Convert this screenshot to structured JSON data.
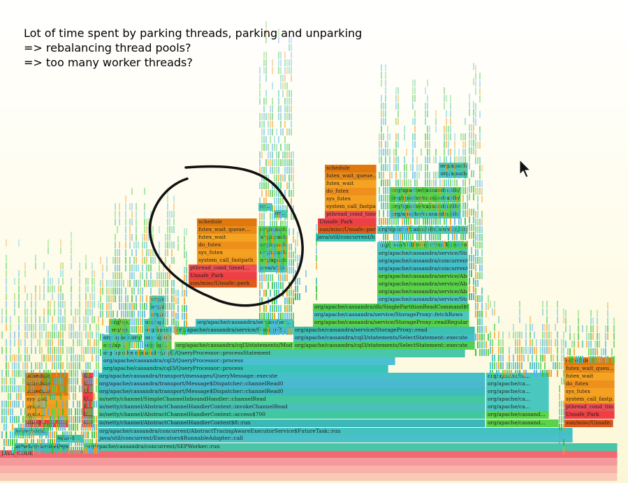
{
  "annotation": {
    "lines": [
      "Lot of time spent by parking threads, parking and unparking",
      "=> rebalancing thread pools?",
      "=> too many worker threads?"
    ]
  },
  "colors": {
    "orange": "#f39c1c",
    "dark_orange": "#e0780e",
    "red": "#ee3f44",
    "green": "#5ad24a",
    "dark_green": "#2fbf3f",
    "teal": "#3cbfb0",
    "cyan": "#4fc8e0",
    "blue": "#5ab0e8",
    "bottom": "#f2777a"
  },
  "frames": [
    {
      "text": "JAVA_CODE",
      "color": "#f06a70"
    },
    {
      "text": "io/netty/channel/epoll/...",
      "color": "#3cbfb0"
    },
    {
      "text": "org/apache/cassandra/concurrent/SEPWorker::run",
      "color": "#49c6a8"
    },
    {
      "text": "java/util/concurrent/Executors$RunnableAdapter::call",
      "color": "#4ac0c8"
    },
    {
      "text": "org/apache/cassandra/concurrent/AbstractTracingAwareExecutorService$FutureTask::run",
      "color": "#44c2c2"
    },
    {
      "text": "io/netty/channel/AbstractChannelHandlerContext$8::run",
      "color": "#3cb8b8"
    },
    {
      "text": "io/netty/channel/AbstractChannelHandlerContext::access$700",
      "color": "#40c8a0"
    },
    {
      "text": "io/netty/channel/AbstractChannelHandlerContext::invokeChannelRead",
      "color": "#4ac0b8"
    },
    {
      "text": "io/netty/channel/SimpleChannelInboundHandler::channelRead",
      "color": "#44c8a4"
    },
    {
      "text": "org/apache/cassandra/transport/Message$Dispatcher::channelRead0",
      "color": "#3fbcc0"
    },
    {
      "text": "org/apache/cassandra/transport/Message$Dispatcher::channelRead0",
      "color": "#4ab8d0"
    },
    {
      "text": "org/apache/cassandra/transport/messages/QueryMessage::execute",
      "color": "#46c0c8"
    },
    {
      "text": "org/apache/cassandra/cql3/QueryProcessor::process",
      "color": "#3ac4b8"
    },
    {
      "text": "org/apache/cassandra/cql3/QueryProcessor::process",
      "color": "#4ac0d0"
    },
    {
      "text": "org/apache/cassandra/cql3/QueryProcessor::processStatement",
      "color": "#48c8a8"
    },
    {
      "text": "org/apache/cassandra/cql3/statements/Modifi...",
      "color": "#5ad24a"
    },
    {
      "text": "org/apache/cassandra/cql3/statements/SelectStatement::execute",
      "color": "#4fd050"
    },
    {
      "text": "org/apache/cassandra/cql3/statements/SelectStatement::execute",
      "color": "#46c0c8"
    },
    {
      "text": "org/apache/cassandra/service/StorageProxy::read",
      "color": "#3cc0b0"
    },
    {
      "text": "org/apache/cassandra/service/StorageProxy::readRegular",
      "color": "#5ad24a"
    },
    {
      "text": "org/apache/cassandra/service/StorageProxy::fetchRows",
      "color": "#4ac8c0"
    },
    {
      "text": "org/apache/cassandra/db/SinglePartitionReadCommand$Group...",
      "color": "#4fd050"
    },
    {
      "text": "org/apache/cassandra/service/StorageP...",
      "color": "#3cc0b8"
    },
    {
      "text": "org/apache/cassandra/service/ser...",
      "color": "#4ac4c8"
    },
    {
      "text": "sun/misc/Unsafe::park",
      "color": "#e05a1a"
    },
    {
      "text": "Unsafe_Park",
      "color": "#ee3f44"
    },
    {
      "text": "pthread_cond_timed...",
      "color": "#ee5055"
    },
    {
      "text": "system_call_fastpath",
      "color": "#f39c1c"
    },
    {
      "text": "sys_futex",
      "color": "#f4a020"
    },
    {
      "text": "do_futex",
      "color": "#f0901c"
    },
    {
      "text": "futex_wait",
      "color": "#f4a422"
    },
    {
      "text": "futex_wait_queue...",
      "color": "#e88a18"
    },
    {
      "text": "schedule",
      "color": "#e0780e"
    },
    {
      "text": "org/apache/cassandra/service/Stor...",
      "color": "#4ac8c0"
    },
    {
      "text": "org/apache/cassandra/service/Abstr...",
      "color": "#5ad24a"
    },
    {
      "text": "org/apache/cassandra/concurrent/...",
      "color": "#44c0c8"
    },
    {
      "text": "java/util/concurrent/Executors$Ru...",
      "color": "#4fd050"
    },
    {
      "text": "java/util/concurrent/lo...",
      "color": "#3ac4b8"
    },
    {
      "text": "org/apache/cassandra/db/S...",
      "color": "#5ad24a"
    },
    {
      "text": "org/apache/cassandra/db/Re...",
      "color": "#4ac8c0"
    },
    {
      "text": "org/apache/ca...",
      "color": "#4ac8c0"
    },
    {
      "text": "org/apache/cassand...",
      "color": "#5ad24a"
    },
    {
      "text": "sun/misc/Unsafe::...",
      "color": "#e05a1a"
    },
    {
      "text": "Unsafe_Park",
      "color": "#ee3f44"
    },
    {
      "text": "pthread_cond_tim...",
      "color": "#ee5055"
    },
    {
      "text": "system_call_fastp...",
      "color": "#f39c1c"
    },
    {
      "text": "sys_futex",
      "color": "#f4a020"
    },
    {
      "text": "do_futex",
      "color": "#f0901c"
    },
    {
      "text": "futex_wait",
      "color": "#f4a422"
    },
    {
      "text": "futex_wait_queu...",
      "color": "#e88a18"
    },
    {
      "text": "schedule",
      "color": "#e0780e"
    },
    {
      "text": "java/util/c...",
      "color": "#4ac8c0"
    },
    {
      "text": "org/apach...",
      "color": "#5ad24a"
    },
    {
      "text": "or...",
      "color": "#4ac8c0"
    },
    {
      "text": "schedule",
      "color": "#e0780e"
    },
    {
      "text": "syste...",
      "color": "#f39c1c"
    },
    {
      "text": "sys_poll",
      "color": "#f4a020"
    },
    {
      "text": "libc-2.1...",
      "color": "#ee3f44"
    },
    {
      "text": "io/netty/ch...",
      "color": "#4ac8c0"
    },
    {
      "text": "io/nett...",
      "color": "#3cc0b0"
    },
    {
      "text": "U...",
      "color": "#ee3f44"
    },
    {
      "text": "org/ap...",
      "color": "#5ad24a"
    },
    {
      "text": "org/apach...",
      "color": "#4ac8c0"
    }
  ]
}
